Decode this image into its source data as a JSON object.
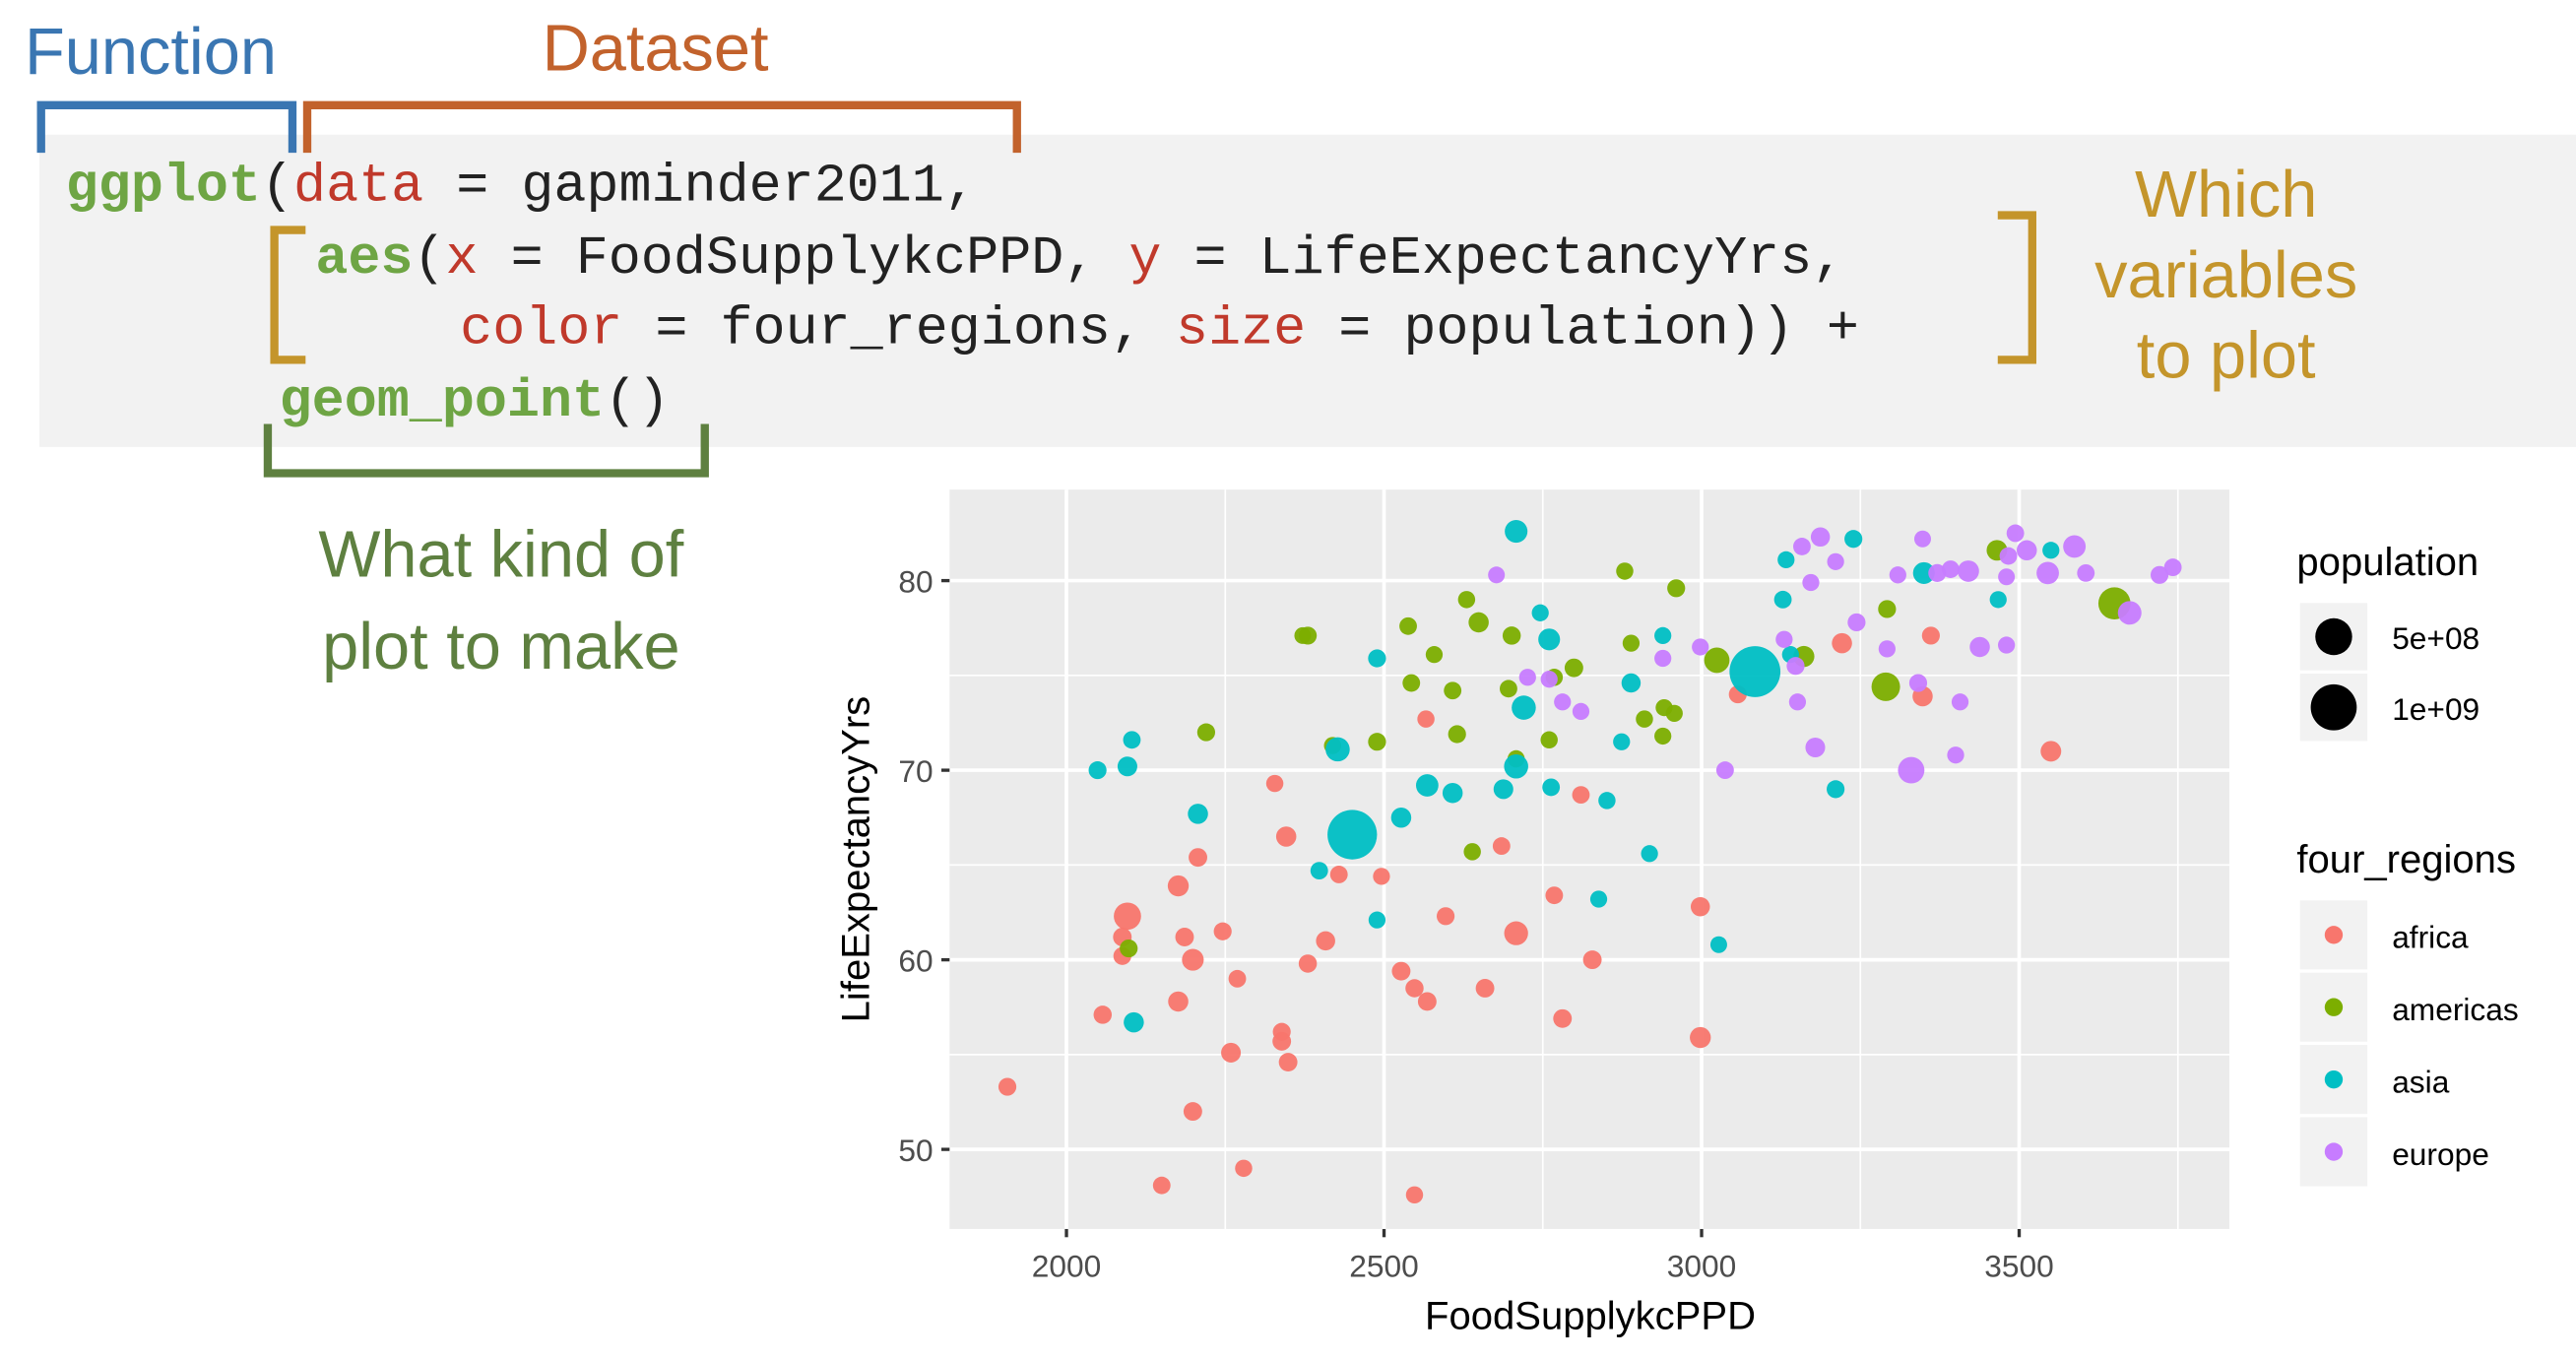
{
  "annotations": {
    "function": {
      "label": "Function",
      "color": "#3a76b2"
    },
    "dataset": {
      "label": "Dataset",
      "color": "#c2622c"
    },
    "variables": {
      "lines": [
        "Which",
        "variables",
        "to plot"
      ],
      "color": "#c4952b"
    },
    "geom": {
      "lines": [
        "What kind of",
        "plot to make"
      ],
      "color": "#5e8040"
    }
  },
  "code": {
    "lines": [
      [
        {
          "t": "ggplot",
          "c": "fn"
        },
        {
          "t": "(",
          "c": "plain"
        },
        {
          "t": "data",
          "c": "arg"
        },
        {
          "t": " = gapminder2011,",
          "c": "plain"
        }
      ],
      [
        {
          "t": "aes",
          "c": "fn"
        },
        {
          "t": "(",
          "c": "plain"
        },
        {
          "t": "x",
          "c": "arg"
        },
        {
          "t": " = FoodSupplykcPPD, ",
          "c": "plain"
        },
        {
          "t": "y",
          "c": "arg"
        },
        {
          "t": " = LifeExpectancyYrs,",
          "c": "plain"
        }
      ],
      [
        {
          "t": "color",
          "c": "arg"
        },
        {
          "t": " = four_regions, ",
          "c": "plain"
        },
        {
          "t": "size",
          "c": "arg"
        },
        {
          "t": " = population)) +",
          "c": "plain"
        }
      ],
      [
        {
          "t": "geom_point",
          "c": "fn"
        },
        {
          "t": "()",
          "c": "plain"
        }
      ]
    ]
  },
  "chart_data": {
    "type": "scatter",
    "xlabel": "FoodSupplykcPPD",
    "ylabel": "LifeExpectancyYrs",
    "xlim": [
      1816,
      3831
    ],
    "ylim": [
      45.8,
      84.8
    ],
    "xticks": [
      2000,
      2500,
      3000,
      3500
    ],
    "yticks": [
      50,
      60,
      70,
      80
    ],
    "grid": true,
    "panel_background": "#ebebeb",
    "legend_position": "right",
    "size_legend": {
      "title": "population",
      "entries": [
        {
          "label": "5e+08",
          "value": 500
        },
        {
          "label": "1e+09",
          "value": 1000
        }
      ]
    },
    "color_legend": {
      "title": "four_regions"
    },
    "point_format": [
      "FoodSupplykcPPD",
      "LifeExpectancyYrs",
      "population_millions"
    ],
    "series": [
      {
        "name": "africa",
        "color": "#F8766D",
        "points": [
          [
            1907,
            53.3,
            10
          ],
          [
            2096,
            62.3,
            160
          ],
          [
            2088,
            61.2,
            15
          ],
          [
            2088,
            60.2,
            10
          ],
          [
            2057,
            57.1,
            12
          ],
          [
            2176,
            63.9,
            40
          ],
          [
            2207,
            65.4,
            15
          ],
          [
            2186,
            61.2,
            15
          ],
          [
            2199,
            60.0,
            50
          ],
          [
            2176,
            57.8,
            30
          ],
          [
            2246,
            61.5,
            10
          ],
          [
            2269,
            59.0,
            8
          ],
          [
            2259,
            55.1,
            25
          ],
          [
            2199,
            52.0,
            15
          ],
          [
            2150,
            48.1,
            8
          ],
          [
            2279,
            49.0,
            6
          ],
          [
            2328,
            69.3,
            6
          ],
          [
            2346,
            66.5,
            30
          ],
          [
            2339,
            56.2,
            10
          ],
          [
            2339,
            55.7,
            15
          ],
          [
            2349,
            54.6,
            15
          ],
          [
            2380,
            59.8,
            12
          ],
          [
            2408,
            61.0,
            20
          ],
          [
            2429,
            64.5,
            8
          ],
          [
            2496,
            64.4,
            5
          ],
          [
            2527,
            59.4,
            15
          ],
          [
            2548,
            58.5,
            12
          ],
          [
            2568,
            57.8,
            15
          ],
          [
            2548,
            47.6,
            6
          ],
          [
            2566,
            72.7,
            6
          ],
          [
            2597,
            62.3,
            10
          ],
          [
            2659,
            58.5,
            15
          ],
          [
            2685,
            66.0,
            8
          ],
          [
            2708,
            61.4,
            85
          ],
          [
            2768,
            63.4,
            8
          ],
          [
            2781,
            56.9,
            15
          ],
          [
            2810,
            68.7,
            8
          ],
          [
            2828,
            60.0,
            15
          ],
          [
            2998,
            62.8,
            20
          ],
          [
            2998,
            55.9,
            40
          ],
          [
            3057,
            74.0,
            10
          ],
          [
            3221,
            76.7,
            30
          ],
          [
            3361,
            77.1,
            10
          ],
          [
            3348,
            73.9,
            30
          ],
          [
            3550,
            71.0,
            35
          ]
        ]
      },
      {
        "name": "americas",
        "color": "#7CAE00",
        "points": [
          [
            2098,
            60.6,
            10
          ],
          [
            2220,
            72.0,
            10
          ],
          [
            2372,
            77.1,
            4
          ],
          [
            2380,
            77.1,
            10
          ],
          [
            2419,
            71.3,
            6
          ],
          [
            2489,
            71.5,
            10
          ],
          [
            2538,
            77.6,
            8
          ],
          [
            2543,
            74.6,
            8
          ],
          [
            2579,
            76.1,
            5
          ],
          [
            2608,
            74.2,
            8
          ],
          [
            2615,
            71.9,
            10
          ],
          [
            2630,
            79.0,
            6
          ],
          [
            2649,
            77.8,
            30
          ],
          [
            2639,
            65.7,
            6
          ],
          [
            2701,
            77.1,
            12
          ],
          [
            2696,
            74.3,
            8
          ],
          [
            2708,
            70.6,
            6
          ],
          [
            2760,
            71.6,
            6
          ],
          [
            2768,
            74.9,
            6
          ],
          [
            2799,
            75.4,
            15
          ],
          [
            2879,
            80.5,
            6
          ],
          [
            2889,
            76.7,
            5
          ],
          [
            2910,
            72.7,
            6
          ],
          [
            2941,
            73.3,
            5
          ],
          [
            2960,
            79.6,
            10
          ],
          [
            2939,
            71.8,
            5
          ],
          [
            2957,
            73.0,
            5
          ],
          [
            3024,
            75.8,
            115
          ],
          [
            3161,
            76.0,
            40
          ],
          [
            3290,
            74.4,
            195
          ],
          [
            3292,
            78.5,
            10
          ],
          [
            3465,
            81.6,
            35
          ],
          [
            3650,
            78.8,
            310
          ]
        ]
      },
      {
        "name": "asia",
        "color": "#00BFC4",
        "points": [
          [
            2708,
            82.6,
            65
          ],
          [
            2746,
            78.3,
            5
          ],
          [
            2760,
            76.9,
            50
          ],
          [
            2720,
            73.3,
            90
          ],
          [
            2708,
            70.2,
            90
          ],
          [
            2763,
            69.1,
            8
          ],
          [
            2851,
            68.4,
            6
          ],
          [
            2838,
            63.2,
            5
          ],
          [
            2918,
            65.6,
            5
          ],
          [
            3027,
            60.8,
            4
          ],
          [
            2489,
            75.9,
            10
          ],
          [
            2427,
            71.1,
            90
          ],
          [
            2450,
            66.6,
            1240
          ],
          [
            2398,
            64.7,
            8
          ],
          [
            2489,
            62.1,
            5
          ],
          [
            2527,
            67.5,
            30
          ],
          [
            2568,
            69.2,
            60
          ],
          [
            2608,
            68.8,
            30
          ],
          [
            2688,
            69.0,
            25
          ],
          [
            2207,
            67.7,
            30
          ],
          [
            2103,
            71.6,
            8
          ],
          [
            2096,
            70.2,
            25
          ],
          [
            2049,
            70.0,
            10
          ],
          [
            2106,
            56.7,
            30
          ],
          [
            2874,
            71.5,
            5
          ],
          [
            2889,
            74.6,
            20
          ],
          [
            2939,
            77.1,
            5
          ],
          [
            3133,
            81.1,
            5
          ],
          [
            3128,
            79.0,
            8
          ],
          [
            3239,
            82.2,
            10
          ],
          [
            3140,
            76.1,
            5
          ],
          [
            3211,
            69.0,
            10
          ],
          [
            3350,
            80.4,
            50
          ],
          [
            3467,
            79.0,
            5
          ],
          [
            3550,
            81.6,
            5
          ],
          [
            3084,
            75.2,
            1340
          ]
        ]
      },
      {
        "name": "europe",
        "color": "#C77CFF",
        "points": [
          [
            2677,
            80.3,
            4
          ],
          [
            2726,
            74.9,
            5
          ],
          [
            2760,
            74.8,
            5
          ],
          [
            2781,
            73.6,
            5
          ],
          [
            2810,
            73.1,
            5
          ],
          [
            2939,
            75.9,
            5
          ],
          [
            2998,
            76.5,
            5
          ],
          [
            3037,
            70.0,
            8
          ],
          [
            3130,
            76.9,
            5
          ],
          [
            3148,
            75.5,
            10
          ],
          [
            3151,
            73.6,
            5
          ],
          [
            3179,
            71.2,
            25
          ],
          [
            3158,
            81.8,
            8
          ],
          [
            3187,
            82.3,
            20
          ],
          [
            3211,
            81.0,
            5
          ],
          [
            3172,
            79.9,
            5
          ],
          [
            3244,
            77.8,
            10
          ],
          [
            3292,
            76.4,
            5
          ],
          [
            3309,
            80.3,
            5
          ],
          [
            3330,
            70.0,
            140
          ],
          [
            3341,
            74.6,
            10
          ],
          [
            3348,
            82.2,
            4
          ],
          [
            3371,
            80.4,
            10
          ],
          [
            3392,
            80.6,
            8
          ],
          [
            3407,
            73.6,
            5
          ],
          [
            3420,
            80.5,
            45
          ],
          [
            3438,
            76.5,
            30
          ],
          [
            3400,
            70.8,
            5
          ],
          [
            3480,
            76.6,
            5
          ],
          [
            3480,
            80.2,
            4
          ],
          [
            3483,
            81.3,
            8
          ],
          [
            3494,
            82.5,
            8
          ],
          [
            3512,
            81.6,
            30
          ],
          [
            3545,
            80.4,
            60
          ],
          [
            3587,
            81.8,
            62
          ],
          [
            3605,
            80.4,
            8
          ],
          [
            3674,
            78.3,
            80
          ],
          [
            3721,
            80.3,
            10
          ],
          [
            3742,
            80.7,
            8
          ]
        ]
      }
    ]
  }
}
